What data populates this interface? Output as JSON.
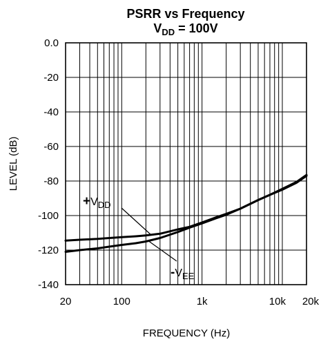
{
  "chart_data": {
    "type": "line",
    "title": "PSRR vs Frequency",
    "subtitle": {
      "base": "V",
      "sub": "DD",
      "rest": " = 100V"
    },
    "xlabel": "FREQUENCY (Hz)",
    "ylabel": "LEVEL (dB)",
    "xscale": "log",
    "xlim": [
      20,
      20000
    ],
    "ylim": [
      -140,
      0
    ],
    "grid": true,
    "xticks": [
      {
        "value": 20,
        "label": "20"
      },
      {
        "value": 100,
        "label": "100"
      },
      {
        "value": 1000,
        "label": "1k"
      },
      {
        "value": 10000,
        "label": "10k"
      },
      {
        "value": 20000,
        "label": "20k"
      }
    ],
    "yticks": [
      {
        "value": 0,
        "label": "0.0"
      },
      {
        "value": -20,
        "label": "-20"
      },
      {
        "value": -40,
        "label": "-40"
      },
      {
        "value": -60,
        "label": "-60"
      },
      {
        "value": -80,
        "label": "-80"
      },
      {
        "value": -100,
        "label": "-100"
      },
      {
        "value": -120,
        "label": "-120"
      },
      {
        "value": -140,
        "label": "-140"
      }
    ],
    "series": [
      {
        "name": "+VDD",
        "label": {
          "prefix": "+",
          "base": "V",
          "sub": "DD"
        },
        "x": [
          20,
          30,
          50,
          70,
          100,
          150,
          200,
          300,
          500,
          700,
          1000,
          1500,
          2000,
          3000,
          5000,
          7000,
          10000,
          15000,
          20000
        ],
        "y": [
          -114.5,
          -114,
          -113.5,
          -113,
          -112.5,
          -112,
          -111.5,
          -110.5,
          -108,
          -106.5,
          -104,
          -101,
          -99,
          -96,
          -91,
          -88,
          -85,
          -81,
          -77
        ]
      },
      {
        "name": "-VEE",
        "label": {
          "prefix": "-",
          "base": "V",
          "sub": "EE"
        },
        "x": [
          20,
          30,
          50,
          70,
          100,
          150,
          200,
          300,
          500,
          700,
          1000,
          1500,
          2000,
          3000,
          5000,
          7000,
          10000,
          15000,
          20000
        ],
        "y": [
          -121,
          -120,
          -119,
          -118,
          -117,
          -116,
          -115,
          -113,
          -109.5,
          -107,
          -104.5,
          -101.5,
          -99.5,
          -96,
          -91,
          -88,
          -84.5,
          -80.5,
          -76.5
        ]
      }
    ],
    "annotations": [
      {
        "series": "+VDD",
        "x": 230,
        "y": -111,
        "anchor": "above-left"
      },
      {
        "series": "-VEE",
        "x": 220,
        "y": -115,
        "anchor": "below-right"
      }
    ]
  }
}
